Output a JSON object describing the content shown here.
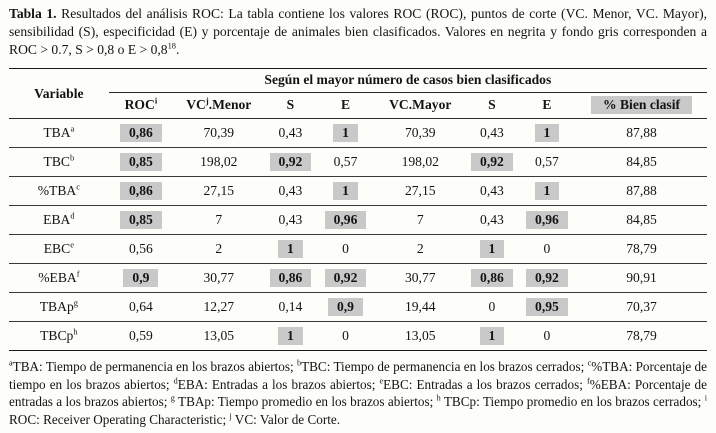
{
  "highlight_color": "#c9c9c9",
  "caption": {
    "segments": [
      {
        "t": "Tabla 1.",
        "b": true
      },
      {
        "t": " Resultados del análisis ROC: La tabla contiene los valores ROC (ROC), puntos de corte (VC. Menor, VC. Mayor), sensibilidad (S), especificidad (E) y porcentaje de animales bien clasificados. Valores en negrita y fondo gris corresponden a ROC > 0.7, S > 0,8 o E > 0,8"
      },
      {
        "t": "18",
        "sup": true
      },
      {
        "t": "."
      }
    ]
  },
  "table": {
    "variable_header": "Variable",
    "group_header": "Según el mayor número de casos bien clasificados",
    "columns": [
      {
        "segments": [
          {
            "t": "ROC"
          },
          {
            "t": "i",
            "sup": true
          }
        ]
      },
      {
        "segments": [
          {
            "t": "VC"
          },
          {
            "t": "j",
            "sup": true
          },
          {
            "t": ".Menor"
          }
        ]
      },
      {
        "segments": [
          {
            "t": "S"
          }
        ]
      },
      {
        "segments": [
          {
            "t": "E"
          }
        ]
      },
      {
        "segments": [
          {
            "t": "VC.Mayor"
          }
        ]
      },
      {
        "segments": [
          {
            "t": "S"
          }
        ]
      },
      {
        "segments": [
          {
            "t": "E"
          }
        ]
      },
      {
        "segments": [
          {
            "t": "% Bien clasif"
          }
        ],
        "gray": true
      }
    ],
    "rows": [
      {
        "variable": "TBA",
        "sup": "a",
        "cells": [
          {
            "v": "0,86",
            "hl": true
          },
          {
            "v": "70,39"
          },
          {
            "v": "0,43"
          },
          {
            "v": "1",
            "hl": true
          },
          {
            "v": "70,39"
          },
          {
            "v": "0,43"
          },
          {
            "v": "1",
            "hl": true
          },
          {
            "v": "87,88"
          }
        ]
      },
      {
        "variable": "TBC",
        "sup": "b",
        "cells": [
          {
            "v": "0,85",
            "hl": true
          },
          {
            "v": "198,02"
          },
          {
            "v": "0,92",
            "hl": true
          },
          {
            "v": "0,57"
          },
          {
            "v": "198,02"
          },
          {
            "v": "0,92",
            "hl": true
          },
          {
            "v": "0,57"
          },
          {
            "v": "84,85"
          }
        ]
      },
      {
        "variable": "%TBA",
        "sup": "c",
        "cells": [
          {
            "v": "0,86",
            "hl": true
          },
          {
            "v": "27,15"
          },
          {
            "v": "0,43"
          },
          {
            "v": "1",
            "hl": true
          },
          {
            "v": "27,15"
          },
          {
            "v": "0,43"
          },
          {
            "v": "1",
            "hl": true
          },
          {
            "v": "87,88"
          }
        ]
      },
      {
        "variable": "EBA",
        "sup": "d",
        "cells": [
          {
            "v": "0,85",
            "hl": true
          },
          {
            "v": "7"
          },
          {
            "v": "0,43"
          },
          {
            "v": "0,96",
            "hl": true
          },
          {
            "v": "7"
          },
          {
            "v": "0,43"
          },
          {
            "v": "0,96",
            "hl": true
          },
          {
            "v": "84,85"
          }
        ]
      },
      {
        "variable": "EBC",
        "sup": "e",
        "cells": [
          {
            "v": "0,56"
          },
          {
            "v": "2"
          },
          {
            "v": "1",
            "hl": true
          },
          {
            "v": "0"
          },
          {
            "v": "2"
          },
          {
            "v": "1",
            "hl": true
          },
          {
            "v": "0"
          },
          {
            "v": "78,79"
          }
        ]
      },
      {
        "variable": "%EBA",
        "sup": "f",
        "cells": [
          {
            "v": "0,9",
            "hl": true
          },
          {
            "v": "30,77"
          },
          {
            "v": "0,86",
            "hl": true
          },
          {
            "v": "0,92",
            "hl": true
          },
          {
            "v": "30,77"
          },
          {
            "v": "0,86",
            "hl": true
          },
          {
            "v": "0,92",
            "hl": true
          },
          {
            "v": "90,91"
          }
        ]
      },
      {
        "variable": "TBAp",
        "sup": "g",
        "cells": [
          {
            "v": "0,64"
          },
          {
            "v": "12,27"
          },
          {
            "v": "0,14"
          },
          {
            "v": "0,9",
            "hl": true
          },
          {
            "v": "19,44"
          },
          {
            "v": "0"
          },
          {
            "v": "0,95",
            "hl": true
          },
          {
            "v": "70,37"
          }
        ]
      },
      {
        "variable": "TBCp",
        "sup": "h",
        "cells": [
          {
            "v": "0,59"
          },
          {
            "v": "13,05"
          },
          {
            "v": "1",
            "hl": true
          },
          {
            "v": "0"
          },
          {
            "v": "13,05"
          },
          {
            "v": "1",
            "hl": true
          },
          {
            "v": "0"
          },
          {
            "v": "78,79"
          }
        ]
      }
    ]
  },
  "footnotes": {
    "segments": [
      {
        "t": "a",
        "sup": true
      },
      {
        "t": "TBA: Tiempo de permanencia en los brazos abiertos; "
      },
      {
        "t": "b",
        "sup": true
      },
      {
        "t": "TBC: Tiempo de permanencia en los brazos cerrados; "
      },
      {
        "t": "c",
        "sup": true
      },
      {
        "t": "%TBA: Porcentaje de tiempo en los brazos abiertos; "
      },
      {
        "t": "d",
        "sup": true
      },
      {
        "t": "EBA: Entradas a los brazos abiertos; "
      },
      {
        "t": "e",
        "sup": true
      },
      {
        "t": "EBC: Entradas a los brazos cerrados; "
      },
      {
        "t": "f",
        "sup": true
      },
      {
        "t": "%EBA: Porcentaje de entradas a los brazos abiertos; "
      },
      {
        "t": "g",
        "sup": true
      },
      {
        "t": " TBAp: Tiempo promedio en los brazos abiertos; "
      },
      {
        "t": "h",
        "sup": true
      },
      {
        "t": " TBCp: Tiempo promedio en los brazos cerrados; "
      },
      {
        "t": "i",
        "sup": true
      },
      {
        "t": " ROC: Receiver Operating Characteristic; "
      },
      {
        "t": "j",
        "sup": true
      },
      {
        "t": " VC: Valor de Corte."
      }
    ]
  }
}
